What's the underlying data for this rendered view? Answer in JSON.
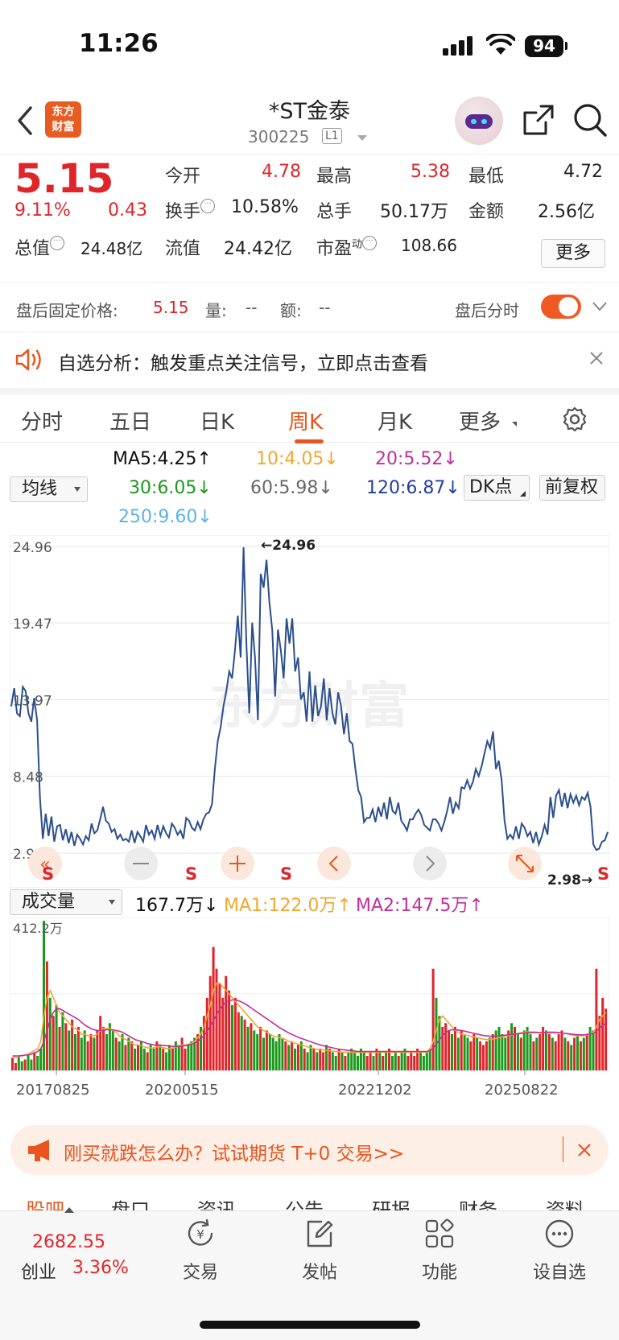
{
  "status_bar": {
    "time": "11:26",
    "battery": "94"
  },
  "nav": {
    "logo_line1": "东方",
    "logo_line2": "财富",
    "title": "*ST金泰",
    "code": "300225",
    "level": "L1"
  },
  "quote": {
    "price": "5.15",
    "change_pct": "9.11%",
    "change": "0.43",
    "open_label": "今开",
    "open": "4.78",
    "high_label": "最高",
    "high": "5.38",
    "low_label": "最低",
    "low": "4.72",
    "turnover_label": "换手",
    "turnover": "10.58%",
    "volume_label": "总手",
    "volume": "50.17万",
    "amount_label": "金额",
    "amount": "2.56亿",
    "total_mv_label": "总值",
    "total_mv": "24.48亿",
    "float_mv_label": "流值",
    "float_mv": "24.42亿",
    "pe_label": "市盈",
    "pe_sup": "动",
    "pe": "108.66",
    "more_label": "更多"
  },
  "afterhours": {
    "label": "盘后固定价格:",
    "price": "5.15",
    "vol_label": "量:",
    "vol": "--",
    "amt_label": "额:",
    "amt": "--",
    "toggle_label": "盘后分时"
  },
  "alert": {
    "text": "自选分析：触发重点关注信号，立即点击查看"
  },
  "tabs": [
    "分时",
    "五日",
    "日K",
    "周K",
    "月K",
    "更多"
  ],
  "ma": {
    "selector": "均线",
    "ma5": "MA5:4.25",
    "ma10": "10:4.05",
    "ma20": "20:5.52",
    "ma30": "30:6.05",
    "ma60": "60:5.98",
    "ma120": "120:6.87",
    "ma250": "250:9.60",
    "dk": "DK点",
    "adjust": "前复权"
  },
  "colors": {
    "accent": "#e8551e",
    "up": "#e0252a",
    "down": "#1a9a1a",
    "line": "#2b4f8c",
    "ma10": "#f2a72e",
    "ma20": "#c0309a",
    "ma120": "#1f3ea0",
    "ma250": "#5ab4e6"
  },
  "chart_data": {
    "type": "line",
    "y_ticks": [
      "24.96",
      "19.47",
      "13.97",
      "8.48",
      "2.98"
    ],
    "ylim": [
      2.98,
      24.96
    ],
    "max_label": "←24.96",
    "min_label": "2.98→",
    "x_labels": [
      "20170825",
      "20200515",
      "20221202",
      "20250822"
    ],
    "signal_labels": [
      "S",
      "S",
      "S",
      "S"
    ],
    "watermark": "东方财富",
    "values": [
      13.5,
      14.8,
      13.0,
      12.8,
      14.9,
      14.6,
      13.0,
      12.4,
      14.1,
      12.5,
      7.0,
      4.0,
      5.8,
      4.2,
      5.6,
      3.8,
      4.9,
      5.0,
      3.9,
      4.7,
      3.7,
      4.5,
      3.5,
      4.3,
      4.0,
      3.6,
      4.2,
      3.9,
      5.1,
      4.4,
      4.6,
      5.4,
      6.3,
      5.3,
      5.1,
      4.5,
      4.7,
      4.0,
      4.3,
      3.9,
      4.0,
      3.8,
      4.6,
      3.7,
      4.5,
      4.2,
      3.8,
      5.0,
      4.3,
      4.6,
      4.0,
      5.0,
      4.2,
      4.9,
      4.4,
      4.1,
      5.1,
      4.8,
      4.3,
      4.6,
      4.0,
      5.5,
      5.3,
      4.8,
      4.6,
      5.2,
      4.7,
      5.4,
      5.8,
      5.9,
      6.5,
      9.0,
      11.0,
      12.0,
      13.5,
      14.6,
      16.0,
      15.5,
      17.5,
      20.0,
      17.0,
      24.9,
      18.0,
      13.0,
      19.5,
      17.0,
      12.5,
      23.0,
      22.0,
      24.0,
      21.0,
      19.0,
      14.2,
      19.0,
      17.5,
      15.5,
      19.8,
      18.0,
      19.8,
      16.0,
      17.0,
      14.0,
      14.5,
      12.4,
      16.0,
      12.4,
      15.0,
      12.8,
      13.5,
      15.5,
      12.5,
      14.8,
      13.0,
      12.2,
      14.5,
      13.5,
      11.5,
      13.0,
      11.0,
      10.8,
      9.0,
      7.5,
      7.0,
      5.2,
      5.5,
      5.5,
      6.1,
      5.2,
      6.3,
      5.6,
      6.6,
      5.4,
      7.0,
      6.0,
      5.8,
      6.6,
      5.3,
      5.0,
      4.6,
      5.4,
      5.4,
      5.8,
      6.1,
      5.7,
      5.0,
      4.8,
      4.6,
      5.4,
      5.4,
      5.1,
      4.6,
      5.2,
      6.0,
      7.0,
      5.8,
      6.6,
      6.2,
      7.7,
      7.6,
      8.2,
      7.6,
      8.1,
      9.0,
      8.5,
      9.2,
      10.1,
      11.0,
      10.5,
      11.7,
      9.0,
      9.6,
      8.2,
      5.3,
      4.0,
      4.3,
      4.0,
      4.9,
      4.0,
      5.1,
      4.8,
      4.2,
      4.5,
      3.7,
      4.5,
      3.6,
      4.2,
      5.0,
      4.3,
      7.0,
      5.5,
      7.1,
      7.5,
      6.3,
      7.3,
      6.2,
      7.2,
      6.6,
      7.1,
      6.4,
      7.0,
      6.8,
      7.3,
      6.3,
      3.6,
      3.2,
      3.3,
      3.8,
      3.9,
      4.5
    ]
  },
  "volume": {
    "selector": "成交量",
    "current": "167.7万",
    "ma1": "MA1:122.0万",
    "ma2": "MA2:147.5万",
    "max_label": "412.2万"
  },
  "volume_chart_data": {
    "type": "bar",
    "ylim": [
      0,
      412.2
    ],
    "values": [
      35,
      20,
      40,
      25,
      30,
      45,
      30,
      50,
      40,
      60,
      412,
      300,
      200,
      150,
      180,
      120,
      160,
      130,
      110,
      140,
      100,
      120,
      90,
      110,
      80,
      100,
      90,
      110,
      150,
      120,
      100,
      130,
      110,
      90,
      80,
      100,
      70,
      90,
      80,
      60,
      70,
      80,
      60,
      50,
      70,
      60,
      80,
      70,
      60,
      50,
      70,
      60,
      80,
      70,
      90,
      60,
      70,
      80,
      90,
      100,
      120,
      150,
      200,
      260,
      340,
      280,
      240,
      200,
      260,
      220,
      180,
      200,
      160,
      150,
      140,
      120,
      130,
      110,
      100,
      120,
      90,
      110,
      100,
      90,
      80,
      100,
      90,
      80,
      70,
      80,
      60,
      70,
      80,
      60,
      50,
      70,
      60,
      50,
      60,
      50,
      70,
      60,
      50,
      40,
      60,
      50,
      40,
      50,
      60,
      50,
      40,
      60,
      50,
      40,
      50,
      40,
      60,
      50,
      40,
      50,
      60,
      40,
      50,
      40,
      50,
      60,
      40,
      50,
      40,
      60,
      50,
      40,
      50,
      60,
      280,
      200,
      150,
      120,
      130,
      110,
      100,
      120,
      90,
      110,
      100,
      90,
      80,
      100,
      90,
      80,
      70,
      80,
      90,
      100,
      110,
      120,
      100,
      90,
      110,
      130,
      120,
      100,
      90,
      110,
      120,
      100,
      80,
      90,
      100,
      120,
      110,
      100,
      90,
      80,
      100,
      110,
      90,
      80,
      70,
      90,
      100,
      80,
      90,
      100,
      120,
      110,
      280,
      150,
      200,
      170
    ],
    "ma1": [
      40,
      35,
      38,
      40,
      42,
      45,
      50,
      55,
      60,
      80,
      150,
      200,
      220,
      200,
      180,
      160,
      150,
      140,
      130,
      120,
      115,
      110,
      100,
      100,
      95,
      95,
      95,
      100,
      110,
      115,
      115,
      115,
      110,
      105,
      95,
      90,
      85,
      80,
      75,
      70,
      70,
      68,
      65,
      62,
      62,
      62,
      65,
      65,
      63,
      60,
      60,
      62,
      65,
      68,
      70,
      70,
      72,
      75,
      80,
      90,
      100,
      120,
      150,
      180,
      220,
      240,
      240,
      230,
      220,
      210,
      200,
      190,
      180,
      170,
      160,
      150,
      140,
      130,
      120,
      115,
      110,
      105,
      100,
      95,
      92,
      90,
      88,
      85,
      80,
      78,
      75,
      72,
      70,
      68,
      65,
      62,
      60,
      58,
      57,
      56,
      55,
      54,
      53,
      52,
      51,
      50,
      50,
      50,
      50,
      50,
      50,
      50,
      50,
      50,
      50,
      50,
      50,
      50,
      50,
      50,
      50,
      50,
      50,
      50,
      50,
      50,
      50,
      50,
      50,
      50,
      50,
      50,
      50,
      60,
      80,
      110,
      140,
      150,
      140,
      130,
      120,
      110,
      105,
      100,
      98,
      96,
      94,
      92,
      90,
      88,
      86,
      85,
      85,
      86,
      88,
      90,
      92,
      94,
      96,
      98,
      100,
      102,
      104,
      105,
      106,
      106,
      106,
      105,
      104,
      104,
      105,
      106,
      106,
      105,
      104,
      103,
      102,
      100,
      98,
      96,
      95,
      95,
      96,
      98,
      100,
      105,
      120,
      140,
      150,
      160
    ],
    "ma2": [
      40,
      40,
      40,
      41,
      42,
      43,
      45,
      48,
      52,
      60,
      80,
      110,
      140,
      160,
      170,
      170,
      165,
      160,
      155,
      150,
      145,
      140,
      132,
      125,
      120,
      115,
      112,
      110,
      110,
      110,
      112,
      112,
      112,
      110,
      108,
      105,
      100,
      95,
      90,
      85,
      82,
      80,
      77,
      74,
      72,
      70,
      70,
      70,
      69,
      68,
      67,
      66,
      66,
      66,
      67,
      68,
      70,
      72,
      75,
      80,
      88,
      96,
      108,
      122,
      138,
      154,
      168,
      180,
      188,
      192,
      194,
      194,
      192,
      188,
      184,
      178,
      172,
      166,
      160,
      154,
      148,
      142,
      136,
      130,
      124,
      118,
      113,
      108,
      103,
      99,
      95,
      91,
      88,
      85,
      82,
      79,
      76,
      73,
      70,
      68,
      66,
      64,
      62,
      60,
      58,
      57,
      56,
      55,
      54,
      53,
      52,
      52,
      52,
      52,
      52,
      52,
      52,
      52,
      52,
      52,
      52,
      52,
      52,
      52,
      52,
      52,
      52,
      52,
      52,
      52,
      52,
      52,
      52,
      55,
      62,
      72,
      84,
      96,
      104,
      110,
      112,
      112,
      111,
      110,
      108,
      106,
      104,
      102,
      100,
      98,
      96,
      95,
      94,
      94,
      94,
      95,
      96,
      97,
      98,
      99,
      100,
      101,
      102,
      103,
      104,
      104,
      104,
      104,
      104,
      104,
      104,
      104,
      104,
      104,
      104,
      103,
      102,
      101,
      100,
      99,
      98,
      98,
      98,
      99,
      100,
      102,
      108,
      116,
      124,
      130
    ]
  },
  "banner": {
    "text": "刚买就跌怎么办？试试期货 T+0 交易>>"
  },
  "sub_tabs": [
    "股吧",
    "盘口",
    "资讯",
    "公告",
    "研报",
    "财务",
    "资料"
  ],
  "bottom_bar": {
    "index_value": "2682.55",
    "index_name": "创业",
    "index_pct": "3.36%",
    "trade": "交易",
    "post": "发帖",
    "func": "功能",
    "watch": "设自选"
  }
}
